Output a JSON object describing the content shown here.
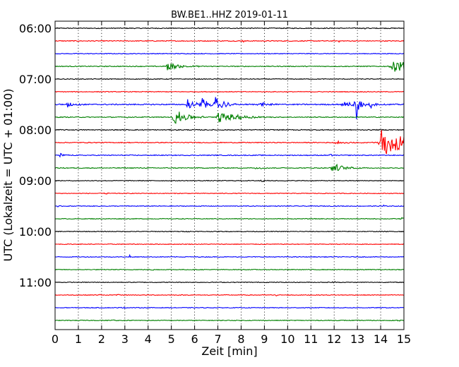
{
  "chart_data": {
    "type": "line",
    "title": "BW.BE1..HHZ 2019-01-11",
    "xlabel": "Zeit  [min]",
    "ylabel": "UTC (Lokalzeit = UTC + 01:00)",
    "xlim": [
      0,
      15
    ],
    "x_ticks": [
      "0",
      "1",
      "2",
      "3",
      "4",
      "5",
      "6",
      "7",
      "8",
      "9",
      "10",
      "11",
      "12",
      "13",
      "14",
      "15"
    ],
    "x_gridlines_dotted_at": [
      1,
      2,
      3,
      4,
      5,
      6,
      7,
      8,
      9,
      10,
      11,
      12,
      13,
      14
    ],
    "y_ticks": [
      "06:00",
      "07:00",
      "08:00",
      "09:00",
      "10:00",
      "11:00"
    ],
    "trace_interval_minutes": 15,
    "trace_colors_cycle": [
      "#000000",
      "#ff0000",
      "#0000ff",
      "#008000"
    ],
    "traces": [
      {
        "start": "06:00",
        "color": "#000000",
        "noise": 0.6,
        "events": [
          {
            "t": 13.3,
            "amp": 2,
            "dur": 0.1
          },
          {
            "t": 4.0,
            "amp": 1.2,
            "dur": 0.05
          }
        ]
      },
      {
        "start": "06:15",
        "color": "#ff0000",
        "noise": 0.6,
        "events": [
          {
            "t": 8.1,
            "amp": 1.5,
            "dur": 0.05
          },
          {
            "t": 12.2,
            "amp": 1.5,
            "dur": 0.05
          }
        ]
      },
      {
        "start": "06:30",
        "color": "#0000ff",
        "noise": 0.5,
        "events": []
      },
      {
        "start": "06:45",
        "color": "#008000",
        "noise": 0.6,
        "events": [
          {
            "t": 4.8,
            "amp": 6,
            "dur": 0.5
          },
          {
            "t": 14.5,
            "amp": 11,
            "dur": 0.7
          }
        ]
      },
      {
        "start": "07:00",
        "color": "#000000",
        "noise": 0.5,
        "events": []
      },
      {
        "start": "07:15",
        "color": "#ff0000",
        "noise": 0.5,
        "events": []
      },
      {
        "start": "07:30",
        "color": "#0000ff",
        "noise": 0.8,
        "events": [
          {
            "t": 0.5,
            "amp": 5,
            "dur": 0.3
          },
          {
            "t": 5.7,
            "amp": 9,
            "dur": 0.25
          },
          {
            "t": 6.3,
            "amp": 11,
            "dur": 0.25
          },
          {
            "t": 6.9,
            "amp": 14,
            "dur": 0.3
          },
          {
            "t": 8.8,
            "amp": 3,
            "dur": 0.4
          },
          {
            "t": 12.3,
            "amp": 4,
            "dur": 0.6
          },
          {
            "t": 12.95,
            "amp": 22,
            "dur": 0.15
          },
          {
            "t": 13.55,
            "amp": 7,
            "dur": 0.15
          }
        ]
      },
      {
        "start": "07:45",
        "color": "#008000",
        "noise": 0.6,
        "events": [
          {
            "t": 5.1,
            "amp": 12,
            "dur": 0.5
          },
          {
            "t": 7.0,
            "amp": 8,
            "dur": 0.8
          },
          {
            "t": 3.1,
            "amp": 2,
            "dur": 0.05
          }
        ]
      },
      {
        "start": "08:00",
        "color": "#000000",
        "noise": 0.6,
        "events": [
          {
            "t": 2.2,
            "amp": 1.5,
            "dur": 0.05
          },
          {
            "t": 10.5,
            "amp": 1.5,
            "dur": 0.05
          }
        ]
      },
      {
        "start": "08:15",
        "color": "#ff0000",
        "noise": 0.6,
        "events": [
          {
            "t": 14.0,
            "amp": 20,
            "dur": 1.4
          },
          {
            "t": 12.0,
            "amp": 1.8,
            "dur": 0.8
          }
        ]
      },
      {
        "start": "08:30",
        "color": "#0000ff",
        "noise": 0.6,
        "events": [
          {
            "t": 0.2,
            "amp": 3,
            "dur": 0.2
          },
          {
            "t": 11.8,
            "amp": 2,
            "dur": 0.1
          }
        ]
      },
      {
        "start": "08:45",
        "color": "#008000",
        "noise": 0.6,
        "events": [
          {
            "t": 11.9,
            "amp": 7,
            "dur": 0.5
          },
          {
            "t": 8.6,
            "amp": 1.5,
            "dur": 0.3
          }
        ]
      },
      {
        "start": "09:00",
        "color": "#000000",
        "noise": 0.5,
        "events": [
          {
            "t": 8.8,
            "amp": 1.5,
            "dur": 0.3
          }
        ]
      },
      {
        "start": "09:15",
        "color": "#ff0000",
        "noise": 0.5,
        "events": [
          {
            "t": 2.2,
            "amp": 2.5,
            "dur": 0.05
          }
        ]
      },
      {
        "start": "09:30",
        "color": "#0000ff",
        "noise": 0.5,
        "events": [
          {
            "t": 14.1,
            "amp": 3,
            "dur": 0.05
          },
          {
            "t": 0.1,
            "amp": 2,
            "dur": 0.05
          }
        ]
      },
      {
        "start": "09:45",
        "color": "#008000",
        "noise": 0.5,
        "events": [
          {
            "t": 14.9,
            "amp": 2,
            "dur": 0.2
          }
        ]
      },
      {
        "start": "10:00",
        "color": "#000000",
        "noise": 0.5,
        "events": [
          {
            "t": 12.1,
            "amp": 2,
            "dur": 0.05
          },
          {
            "t": 5.8,
            "amp": 1.5,
            "dur": 0.05
          }
        ]
      },
      {
        "start": "10:15",
        "color": "#ff0000",
        "noise": 0.5,
        "events": [
          {
            "t": 10.6,
            "amp": 1.5,
            "dur": 0.05
          }
        ]
      },
      {
        "start": "10:30",
        "color": "#0000ff",
        "noise": 0.5,
        "events": [
          {
            "t": 3.2,
            "amp": 3,
            "dur": 0.05
          },
          {
            "t": 5.6,
            "amp": 1.5,
            "dur": 0.05
          }
        ]
      },
      {
        "start": "10:45",
        "color": "#008000",
        "noise": 0.5,
        "events": [
          {
            "t": 4.2,
            "amp": 2.5,
            "dur": 0.05
          }
        ]
      },
      {
        "start": "11:00",
        "color": "#000000",
        "noise": 0.5,
        "events": [
          {
            "t": 12.0,
            "amp": 2,
            "dur": 0.05
          }
        ]
      },
      {
        "start": "11:15",
        "color": "#ff0000",
        "noise": 0.5,
        "events": [
          {
            "t": 1.9,
            "amp": 2,
            "dur": 0.05
          },
          {
            "t": 2.7,
            "amp": 2,
            "dur": 0.05
          },
          {
            "t": 9.5,
            "amp": 1.5,
            "dur": 0.05
          }
        ]
      },
      {
        "start": "11:30",
        "color": "#0000ff",
        "noise": 0.5,
        "events": [
          {
            "t": 0.2,
            "amp": 2,
            "dur": 0.05
          },
          {
            "t": 2.95,
            "amp": 2,
            "dur": 0.05
          }
        ]
      },
      {
        "start": "11:45",
        "color": "#008000",
        "noise": 0.5,
        "events": [
          {
            "t": 2.5,
            "amp": 2,
            "dur": 0.05
          },
          {
            "t": 3.9,
            "amp": 1.5,
            "dur": 0.05
          },
          {
            "t": 14.8,
            "amp": 2,
            "dur": 0.05
          }
        ]
      }
    ],
    "grid": "x-dotted",
    "legend": "none"
  }
}
